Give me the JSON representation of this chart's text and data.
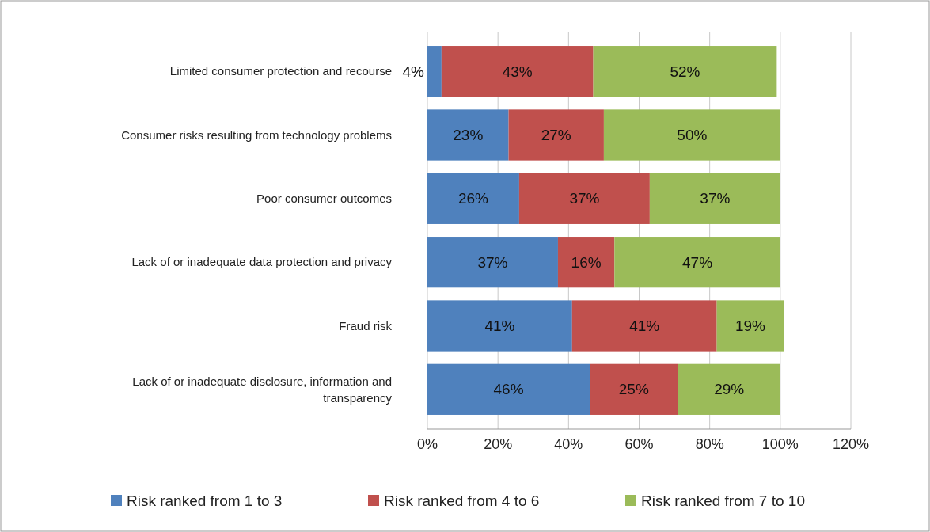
{
  "chart_data": {
    "type": "bar",
    "orientation": "horizontal",
    "stacked": true,
    "categories": [
      "Limited consumer protection and recourse",
      "Consumer risks resulting from technology problems",
      "Poor consumer outcomes",
      "Lack of or inadequate data protection and privacy",
      "Fraud risk",
      "Lack of or inadequate disclosure, information and transparency"
    ],
    "series": [
      {
        "name": "Risk ranked from 1 to 3",
        "color": "#4f81bd",
        "values": [
          4,
          23,
          26,
          37,
          41,
          46
        ],
        "value_labels": [
          "4%",
          "23%",
          "26%",
          "37%",
          "41%",
          "46%"
        ]
      },
      {
        "name": "Risk ranked from 4 to 6",
        "color": "#c0504d",
        "values": [
          43,
          27,
          37,
          16,
          41,
          25
        ],
        "value_labels": [
          "43%",
          "27%",
          "37%",
          "16%",
          "41%",
          "25%"
        ]
      },
      {
        "name": "Risk ranked from 7 to 10",
        "color": "#9bbb59",
        "values": [
          52,
          50,
          37,
          47,
          19,
          29
        ],
        "value_labels": [
          "52%",
          "50%",
          "37%",
          "47%",
          "19%",
          "29%"
        ]
      }
    ],
    "xlim": [
      0,
      120
    ],
    "xticks": [
      {
        "value": 0,
        "label": "0%"
      },
      {
        "value": 20,
        "label": "20%"
      },
      {
        "value": 40,
        "label": "40%"
      },
      {
        "value": 60,
        "label": "60%"
      },
      {
        "value": 80,
        "label": "80%"
      },
      {
        "value": 100,
        "label": "100%"
      },
      {
        "value": 120,
        "label": "120%"
      }
    ],
    "grid": "x",
    "legend": "bottom"
  }
}
